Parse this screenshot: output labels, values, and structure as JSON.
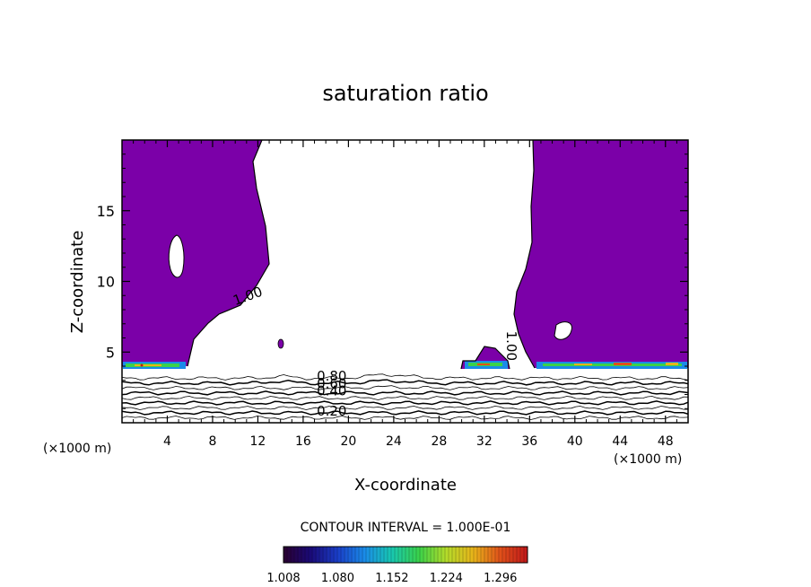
{
  "chart_data": {
    "type": "contour",
    "title": "saturation ratio",
    "xlabel": "X-coordinate",
    "ylabel": "Z-coordinate",
    "x_unit_left": "(×1000 m)",
    "x_unit_right": "(×1000 m)",
    "xlim": [
      0,
      50
    ],
    "ylim": [
      0,
      20
    ],
    "x_ticks": [
      4,
      8,
      12,
      16,
      20,
      24,
      28,
      32,
      36,
      40,
      44,
      48
    ],
    "y_ticks": [
      5,
      10,
      15
    ],
    "contour_interval_label": "CONTOUR INTERVAL = 1.000E-01",
    "contour_labels": [
      {
        "text": "1.00",
        "x": 10.0,
        "y": 8.3,
        "rotate": -20
      },
      {
        "text": "1.00",
        "x": 34.0,
        "y": 6.5,
        "rotate": 90
      },
      {
        "text": "0.80",
        "x": 17.2,
        "y": 3.0,
        "rotate": 0
      },
      {
        "text": "0.60",
        "x": 17.2,
        "y": 2.45,
        "rotate": 0
      },
      {
        "text": "0.40",
        "x": 17.2,
        "y": 1.95,
        "rotate": 0
      },
      {
        "text": "0.20",
        "x": 17.2,
        "y": 0.5,
        "rotate": 0
      }
    ],
    "fill_color": "#7b00a8",
    "subsaturated_contour_levels": [
      0.1,
      0.2,
      0.3,
      0.4,
      0.5,
      0.6,
      0.7,
      0.8,
      0.9
    ],
    "colorbar": {
      "tick_labels": [
        "1.008",
        "1.080",
        "1.152",
        "1.224",
        "1.296"
      ],
      "colors": [
        "#2a0030",
        "#1a0a78",
        "#1a3ec8",
        "#1a8ce8",
        "#18c8b0",
        "#3ad24a",
        "#b4dc2a",
        "#e8b41a",
        "#e0501a",
        "#c0181a"
      ]
    }
  }
}
